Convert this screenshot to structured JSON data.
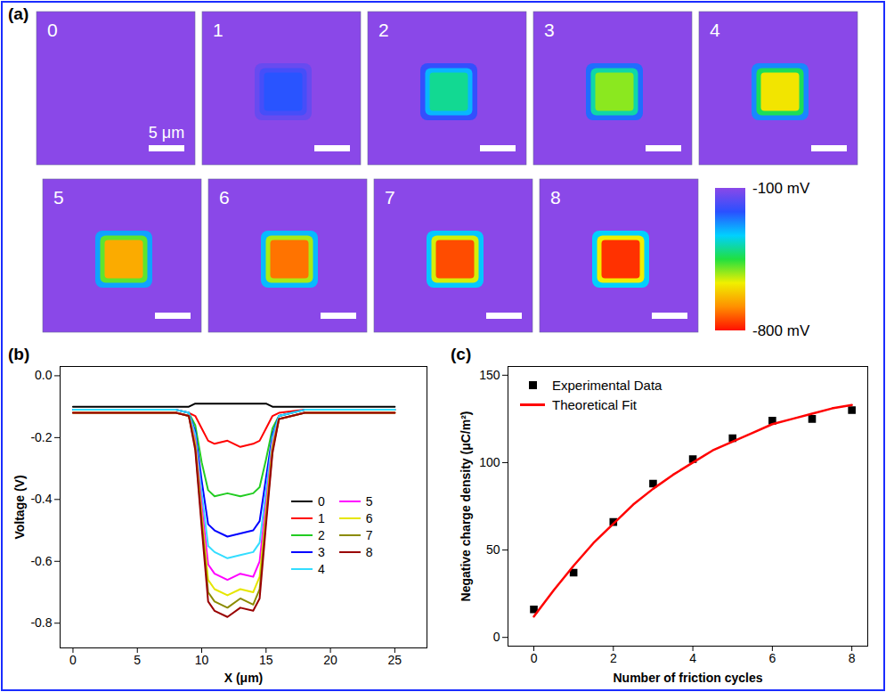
{
  "chart_data": [
    {
      "panel": "(a)",
      "type": "image_grid",
      "images": [
        {
          "label": "0",
          "background": -100,
          "square": null
        },
        {
          "label": "1",
          "background": -100,
          "square": -220
        },
        {
          "label": "2",
          "background": -100,
          "square": -400
        },
        {
          "label": "3",
          "background": -100,
          "square": -510
        },
        {
          "label": "4",
          "background": -100,
          "square": -580
        },
        {
          "label": "5",
          "background": -100,
          "square": -650
        },
        {
          "label": "6",
          "background": -100,
          "square": -710
        },
        {
          "label": "7",
          "background": -100,
          "square": -745
        },
        {
          "label": "8",
          "background": -100,
          "square": -770
        }
      ],
      "scale_bar": "5 μm",
      "colorbar": {
        "range": [
          -100,
          -800
        ],
        "ticks": [
          {
            "value": -100,
            "label": "-100 mV"
          },
          {
            "value": -800,
            "label": "-800 mV"
          }
        ],
        "colors": [
          "#8a48e8",
          "#2a50ff",
          "#00d0ff",
          "#20e040",
          "#f0f000",
          "#ff9000",
          "#ff1000"
        ]
      }
    },
    {
      "panel": "(b)",
      "type": "line",
      "xlabel": "X (μm)",
      "ylabel": "Voltage (V)",
      "xlim": [
        -1,
        27.5
      ],
      "xticks": [
        0,
        5,
        10,
        15,
        20,
        25
      ],
      "ylim": [
        -0.88,
        0.03
      ],
      "yticks": [
        {
          "value": 0,
          "label": "0.0"
        },
        -0.2,
        -0.4,
        -0.6,
        -0.8
      ],
      "legend": "lower right",
      "x": [
        0,
        2,
        4,
        6,
        8,
        9,
        9.5,
        10,
        10.5,
        11,
        12,
        13,
        14,
        14.5,
        15,
        15.5,
        16,
        18,
        20,
        22,
        25
      ],
      "series": [
        {
          "name": "0",
          "color": "#000000",
          "values": [
            -0.1,
            -0.1,
            -0.1,
            -0.1,
            -0.1,
            -0.1,
            -0.09,
            -0.09,
            -0.09,
            -0.09,
            -0.09,
            -0.09,
            -0.09,
            -0.09,
            -0.09,
            -0.1,
            -0.1,
            -0.1,
            -0.1,
            -0.1,
            -0.1
          ]
        },
        {
          "name": "1",
          "color": "#ff0000",
          "values": [
            -0.11,
            -0.11,
            -0.11,
            -0.11,
            -0.11,
            -0.12,
            -0.13,
            -0.17,
            -0.21,
            -0.22,
            -0.21,
            -0.23,
            -0.22,
            -0.21,
            -0.17,
            -0.13,
            -0.12,
            -0.11,
            -0.11,
            -0.11,
            -0.11
          ]
        },
        {
          "name": "2",
          "color": "#22cc22",
          "values": [
            -0.11,
            -0.11,
            -0.11,
            -0.11,
            -0.11,
            -0.12,
            -0.16,
            -0.28,
            -0.37,
            -0.39,
            -0.38,
            -0.39,
            -0.38,
            -0.36,
            -0.27,
            -0.17,
            -0.13,
            -0.11,
            -0.11,
            -0.11,
            -0.11
          ]
        },
        {
          "name": "3",
          "color": "#0000ff",
          "values": [
            -0.11,
            -0.11,
            -0.11,
            -0.11,
            -0.11,
            -0.12,
            -0.18,
            -0.34,
            -0.48,
            -0.5,
            -0.52,
            -0.51,
            -0.5,
            -0.47,
            -0.33,
            -0.19,
            -0.13,
            -0.11,
            -0.11,
            -0.11,
            -0.11
          ]
        },
        {
          "name": "4",
          "color": "#33ddff",
          "values": [
            -0.11,
            -0.11,
            -0.11,
            -0.11,
            -0.11,
            -0.12,
            -0.19,
            -0.38,
            -0.55,
            -0.57,
            -0.59,
            -0.58,
            -0.57,
            -0.54,
            -0.37,
            -0.2,
            -0.13,
            -0.11,
            -0.11,
            -0.11,
            -0.11
          ]
        },
        {
          "name": "5",
          "color": "#ff00ff",
          "values": [
            -0.12,
            -0.12,
            -0.12,
            -0.12,
            -0.12,
            -0.13,
            -0.21,
            -0.42,
            -0.61,
            -0.64,
            -0.66,
            -0.64,
            -0.65,
            -0.6,
            -0.41,
            -0.22,
            -0.14,
            -0.12,
            -0.12,
            -0.12,
            -0.12
          ]
        },
        {
          "name": "6",
          "color": "#e6e600",
          "values": [
            -0.12,
            -0.12,
            -0.12,
            -0.12,
            -0.12,
            -0.13,
            -0.22,
            -0.45,
            -0.66,
            -0.69,
            -0.71,
            -0.69,
            -0.7,
            -0.65,
            -0.44,
            -0.23,
            -0.14,
            -0.12,
            -0.12,
            -0.12,
            -0.12
          ]
        },
        {
          "name": "7",
          "color": "#8b8b00",
          "values": [
            -0.12,
            -0.12,
            -0.12,
            -0.12,
            -0.12,
            -0.13,
            -0.23,
            -0.47,
            -0.7,
            -0.73,
            -0.75,
            -0.72,
            -0.74,
            -0.69,
            -0.46,
            -0.24,
            -0.14,
            -0.12,
            -0.12,
            -0.12,
            -0.12
          ]
        },
        {
          "name": "8",
          "color": "#990000",
          "values": [
            -0.12,
            -0.12,
            -0.12,
            -0.12,
            -0.12,
            -0.13,
            -0.24,
            -0.49,
            -0.73,
            -0.76,
            -0.78,
            -0.75,
            -0.76,
            -0.72,
            -0.48,
            -0.25,
            -0.14,
            -0.12,
            -0.12,
            -0.12,
            -0.12
          ]
        }
      ]
    },
    {
      "panel": "(c)",
      "type": "scatter",
      "xlabel": "Number of friction cycles",
      "ylabel": "Negative charge density (μC/m²)",
      "xlim": [
        -0.65,
        8.4
      ],
      "xticks": [
        0,
        2,
        4,
        6,
        8
      ],
      "ylim": [
        -5,
        155
      ],
      "yticks": [
        0,
        50,
        100,
        150
      ],
      "legend": "upper left",
      "series": [
        {
          "name": "Experimental Data",
          "type": "scatter",
          "marker": "square",
          "color": "#000000",
          "x": [
            0,
            1,
            2,
            3,
            4,
            5,
            6,
            7,
            8
          ],
          "values": [
            16,
            37,
            66,
            88,
            102,
            114,
            124,
            125,
            130
          ]
        },
        {
          "name": "Theoretical Fit",
          "type": "line",
          "color": "#ff0000",
          "x": [
            0,
            0.5,
            1,
            1.5,
            2,
            2.5,
            3,
            3.5,
            4,
            4.5,
            5,
            5.5,
            6,
            6.5,
            7,
            7.5,
            8
          ],
          "values": [
            12,
            27,
            41,
            54,
            65,
            76,
            85,
            93,
            100,
            107,
            112,
            117,
            122,
            125,
            128,
            131,
            133
          ]
        }
      ]
    }
  ]
}
